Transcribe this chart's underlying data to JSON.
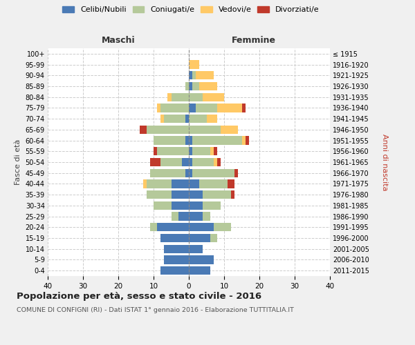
{
  "age_groups": [
    "0-4",
    "5-9",
    "10-14",
    "15-19",
    "20-24",
    "25-29",
    "30-34",
    "35-39",
    "40-44",
    "45-49",
    "50-54",
    "55-59",
    "60-64",
    "65-69",
    "70-74",
    "75-79",
    "80-84",
    "85-89",
    "90-94",
    "95-99",
    "100+"
  ],
  "birth_years": [
    "2011-2015",
    "2006-2010",
    "2001-2005",
    "1996-2000",
    "1991-1995",
    "1986-1990",
    "1981-1985",
    "1976-1980",
    "1971-1975",
    "1966-1970",
    "1961-1965",
    "1956-1960",
    "1951-1955",
    "1946-1950",
    "1941-1945",
    "1936-1940",
    "1931-1935",
    "1926-1930",
    "1921-1925",
    "1916-1920",
    "≤ 1915"
  ],
  "males": {
    "celibi": [
      8,
      7,
      7,
      8,
      9,
      3,
      5,
      5,
      5,
      1,
      2,
      0,
      1,
      0,
      1,
      0,
      0,
      0,
      0,
      0,
      0
    ],
    "coniugati": [
      0,
      0,
      0,
      0,
      2,
      2,
      5,
      7,
      7,
      10,
      6,
      9,
      9,
      12,
      6,
      8,
      5,
      1,
      0,
      0,
      0
    ],
    "vedovi": [
      0,
      0,
      0,
      0,
      0,
      0,
      0,
      0,
      1,
      0,
      0,
      0,
      0,
      0,
      1,
      1,
      1,
      0,
      0,
      0,
      0
    ],
    "divorziati": [
      0,
      0,
      0,
      0,
      0,
      0,
      0,
      0,
      0,
      0,
      3,
      1,
      0,
      2,
      0,
      0,
      0,
      0,
      0,
      0,
      0
    ]
  },
  "females": {
    "nubili": [
      6,
      7,
      4,
      6,
      7,
      4,
      4,
      4,
      3,
      1,
      1,
      1,
      1,
      0,
      0,
      2,
      0,
      1,
      1,
      0,
      0
    ],
    "coniugate": [
      0,
      0,
      0,
      2,
      5,
      2,
      5,
      8,
      8,
      12,
      6,
      5,
      14,
      9,
      5,
      6,
      4,
      2,
      1,
      0,
      0
    ],
    "vedove": [
      0,
      0,
      0,
      0,
      0,
      0,
      0,
      0,
      0,
      0,
      1,
      1,
      1,
      5,
      3,
      7,
      6,
      5,
      5,
      3,
      0
    ],
    "divorziate": [
      0,
      0,
      0,
      0,
      0,
      0,
      0,
      1,
      2,
      1,
      1,
      1,
      1,
      0,
      0,
      1,
      0,
      0,
      0,
      0,
      0
    ]
  },
  "colors": {
    "celibi": "#4a7ab5",
    "coniugati": "#b5c99a",
    "vedovi": "#ffc966",
    "divorziati": "#c0392b"
  },
  "title": "Popolazione per età, sesso e stato civile - 2016",
  "subtitle": "COMUNE DI CONFIGNI (RI) - Dati ISTAT 1° gennaio 2016 - Elaborazione TUTTITALIA.IT",
  "xlabel_left": "Maschi",
  "xlabel_right": "Femmine",
  "ylabel_left": "Fasce di età",
  "ylabel_right": "Anni di nascita",
  "xlim": 40,
  "legend_labels": [
    "Celibi/Nubili",
    "Coniugati/e",
    "Vedovi/e",
    "Divorziati/e"
  ],
  "bg_color": "#f0f0f0",
  "plot_bg": "#ffffff"
}
